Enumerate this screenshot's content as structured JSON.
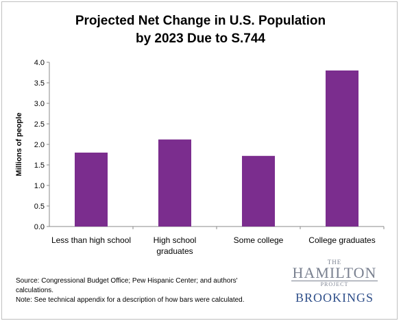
{
  "title_lines": [
    "Projected Net Change in U.S. Population",
    "by 2023 Due to S.744"
  ],
  "source": "Source: Congressional Budget Office; Pew Hispanic Center; and authors' calculations.",
  "note": "Note: See technical appendix for a description of how bars were calculated.",
  "logo": {
    "the": "THE",
    "name": "HAMILTON",
    "project": "PROJECT",
    "brookings": "BROOKINGS"
  },
  "chart_data": {
    "type": "bar",
    "categories": [
      [
        "Less than high school"
      ],
      [
        "High school",
        "graduates"
      ],
      [
        "Some college"
      ],
      [
        "College graduates"
      ]
    ],
    "values": [
      1.8,
      2.12,
      1.72,
      3.8
    ],
    "ylabel": "Millions of people",
    "ylim": [
      0,
      4.0
    ],
    "yticks": [
      "0.0",
      "0.5",
      "1.0",
      "1.5",
      "2.0",
      "2.5",
      "3.0",
      "3.5",
      "4.0"
    ],
    "bar_color": "#7b2d8e",
    "grid": false
  }
}
